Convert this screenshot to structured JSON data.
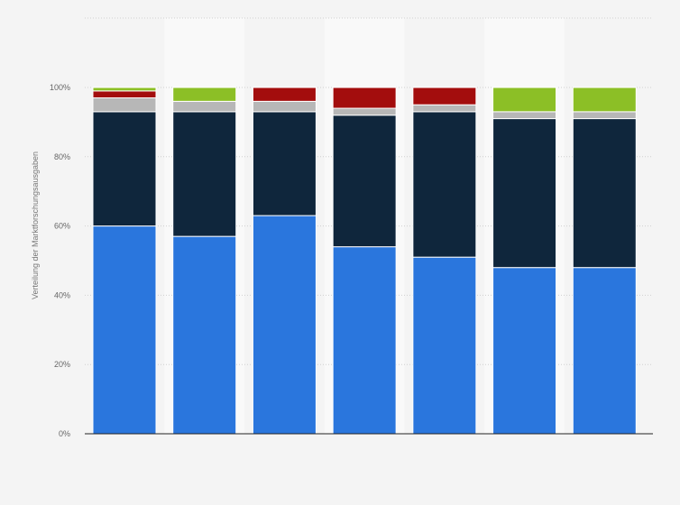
{
  "chart_data": {
    "type": "bar",
    "stacked": true,
    "categories": [
      "",
      "",
      "",
      "",
      "",
      "",
      ""
    ],
    "ylabel": "Verteilung der Marktforschungsausgaben",
    "xlabel": "",
    "ylim": [
      0,
      100
    ],
    "yticks": [
      "0%",
      "20%",
      "40%",
      "60%",
      "80%",
      "100%"
    ],
    "grid": true,
    "legend": "none",
    "series": [
      {
        "color": "#2a76dd",
        "values": [
          60,
          57,
          63,
          54,
          51,
          48,
          48
        ]
      },
      {
        "color": "#0f263c",
        "values": [
          33,
          36,
          30,
          38,
          42,
          43,
          43
        ]
      },
      {
        "color": "#b7b7b7",
        "values": [
          4,
          3,
          3,
          2,
          2,
          2,
          2
        ]
      },
      {
        "color": "#a30d0d",
        "values": [
          2,
          0,
          4,
          6,
          5,
          0,
          0
        ]
      },
      {
        "color": "#8cbf26",
        "values": [
          1,
          4,
          0,
          0,
          0,
          7,
          7
        ]
      }
    ]
  }
}
